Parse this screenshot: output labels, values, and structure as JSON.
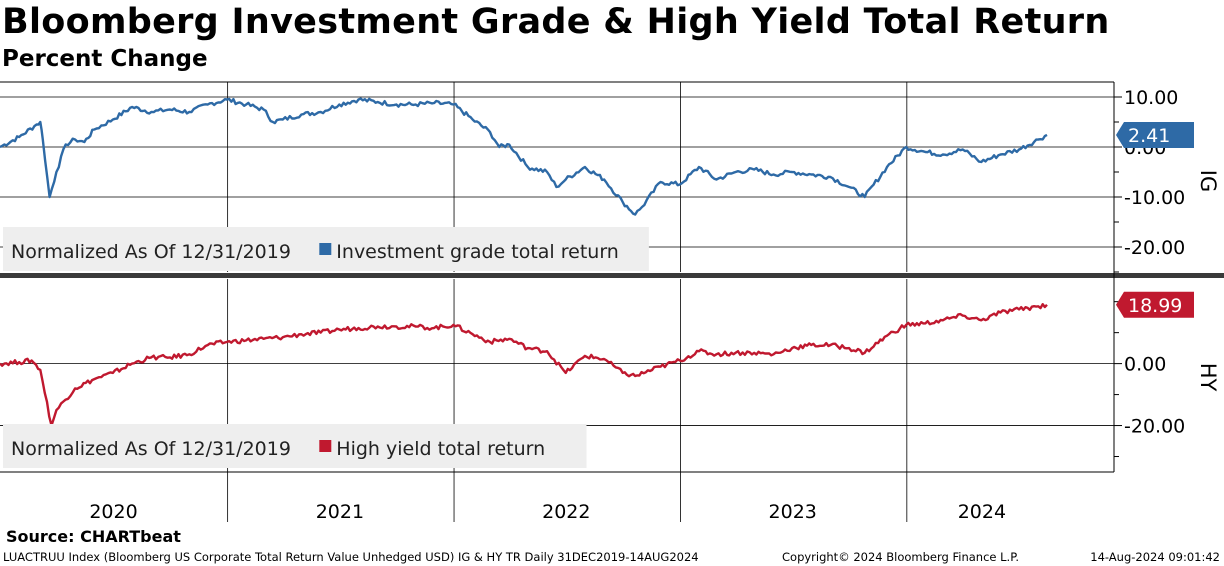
{
  "title": "Bloomberg Investment Grade & High Yield Total Return",
  "subtitle": "Percent Change",
  "source": "Source: CHARTbeat",
  "footer": {
    "left": "LUACTRUU Index (Bloomberg US Corporate Total Return Value Unhedged USD) IG & HY TR  Daily 31DEC2019-14AUG2024",
    "middle": "Copyright© 2024 Bloomberg Finance L.P.",
    "right": "14-Aug-2024 09:01:42"
  },
  "colors": {
    "ig": "#2e6aa6",
    "hy": "#c0192f",
    "grid": "#000000",
    "legend_bg": "#eeeeee",
    "separator": "#3a3a3a"
  },
  "chart_data": [
    {
      "type": "line",
      "panel": "IG",
      "axis_label": "IG",
      "legend_prefix": "Normalized As Of 12/31/2019",
      "ylim": [
        -25,
        13
      ],
      "yticks": [
        10,
        0,
        -10,
        -20
      ],
      "ytick_labels": [
        "10.00",
        "0.00",
        "-10.00",
        "-20.00"
      ],
      "last_value_label": "2.41",
      "grid": true,
      "series": [
        {
          "name": "Investment grade total return",
          "points": [
            [
              "2019-12-31",
              0.0
            ],
            [
              "2020-01-31",
              2.0
            ],
            [
              "2020-02-28",
              4.5
            ],
            [
              "2020-03-05",
              5.0
            ],
            [
              "2020-03-09",
              1.5
            ],
            [
              "2020-03-20",
              -10.0
            ],
            [
              "2020-03-31",
              -5.0
            ],
            [
              "2020-04-15",
              0.5
            ],
            [
              "2020-04-30",
              1.5
            ],
            [
              "2020-05-15",
              1.0
            ],
            [
              "2020-05-31",
              3.5
            ],
            [
              "2020-06-30",
              5.5
            ],
            [
              "2020-07-31",
              8.0
            ],
            [
              "2020-08-31",
              7.0
            ],
            [
              "2020-09-30",
              7.5
            ],
            [
              "2020-10-31",
              7.0
            ],
            [
              "2020-11-30",
              8.5
            ],
            [
              "2020-12-31",
              9.5
            ],
            [
              "2021-01-31",
              8.5
            ],
            [
              "2021-02-28",
              7.5
            ],
            [
              "2021-03-15",
              5.0
            ],
            [
              "2021-03-31",
              5.5
            ],
            [
              "2021-04-30",
              6.5
            ],
            [
              "2021-05-31",
              7.0
            ],
            [
              "2021-06-30",
              8.5
            ],
            [
              "2021-07-31",
              9.5
            ],
            [
              "2021-08-31",
              9.0
            ],
            [
              "2021-09-30",
              8.5
            ],
            [
              "2021-10-31",
              8.5
            ],
            [
              "2021-11-30",
              8.8
            ],
            [
              "2021-12-31",
              8.5
            ],
            [
              "2022-01-31",
              5.5
            ],
            [
              "2022-02-28",
              3.0
            ],
            [
              "2022-03-15",
              0.0
            ],
            [
              "2022-03-31",
              0.5
            ],
            [
              "2022-04-30",
              -4.0
            ],
            [
              "2022-05-31",
              -5.0
            ],
            [
              "2022-06-15",
              -8.0
            ],
            [
              "2022-06-30",
              -6.5
            ],
            [
              "2022-07-31",
              -4.0
            ],
            [
              "2022-08-31",
              -6.5
            ],
            [
              "2022-09-30",
              -11.0
            ],
            [
              "2022-10-20",
              -13.5
            ],
            [
              "2022-10-31",
              -12.0
            ],
            [
              "2022-11-30",
              -7.0
            ],
            [
              "2022-12-31",
              -7.5
            ],
            [
              "2023-01-31",
              -4.0
            ],
            [
              "2023-02-28",
              -6.5
            ],
            [
              "2023-03-31",
              -5.0
            ],
            [
              "2023-04-30",
              -4.5
            ],
            [
              "2023-05-31",
              -5.5
            ],
            [
              "2023-06-30",
              -5.0
            ],
            [
              "2023-07-31",
              -5.5
            ],
            [
              "2023-08-31",
              -6.0
            ],
            [
              "2023-09-30",
              -8.0
            ],
            [
              "2023-10-25",
              -10.0
            ],
            [
              "2023-11-30",
              -4.0
            ],
            [
              "2023-12-31",
              0.0
            ],
            [
              "2024-01-31",
              -1.0
            ],
            [
              "2024-02-28",
              -1.5
            ],
            [
              "2024-03-31",
              -0.5
            ],
            [
              "2024-04-30",
              -3.0
            ],
            [
              "2024-05-31",
              -1.5
            ],
            [
              "2024-06-30",
              -0.5
            ],
            [
              "2024-07-31",
              1.5
            ],
            [
              "2024-08-14",
              2.41
            ]
          ]
        }
      ]
    },
    {
      "type": "line",
      "panel": "HY",
      "axis_label": "HY",
      "legend_prefix": "Normalized As Of 12/31/2019",
      "ylim": [
        -35,
        27
      ],
      "yticks": [
        0,
        -20
      ],
      "ytick_labels": [
        "0.00",
        "-20.00"
      ],
      "last_value_label": "18.99",
      "grid": true,
      "series": [
        {
          "name": "High yield total return",
          "points": [
            [
              "2019-12-31",
              0.0
            ],
            [
              "2020-01-31",
              0.5
            ],
            [
              "2020-02-20",
              1.0
            ],
            [
              "2020-03-05",
              -2.0
            ],
            [
              "2020-03-23",
              -20.0
            ],
            [
              "2020-03-31",
              -15.0
            ],
            [
              "2020-04-30",
              -8.0
            ],
            [
              "2020-05-31",
              -5.0
            ],
            [
              "2020-06-30",
              -3.0
            ],
            [
              "2020-07-31",
              0.0
            ],
            [
              "2020-08-31",
              2.0
            ],
            [
              "2020-09-30",
              2.0
            ],
            [
              "2020-10-31",
              3.0
            ],
            [
              "2020-11-30",
              6.0
            ],
            [
              "2020-12-31",
              7.0
            ],
            [
              "2021-01-31",
              7.5
            ],
            [
              "2021-02-28",
              8.0
            ],
            [
              "2021-03-31",
              8.5
            ],
            [
              "2021-04-30",
              9.5
            ],
            [
              "2021-05-31",
              10.0
            ],
            [
              "2021-06-30",
              11.0
            ],
            [
              "2021-07-31",
              11.5
            ],
            [
              "2021-08-31",
              12.0
            ],
            [
              "2021-09-30",
              12.0
            ],
            [
              "2021-10-31",
              12.0
            ],
            [
              "2021-11-30",
              11.5
            ],
            [
              "2021-12-31",
              12.5
            ],
            [
              "2022-01-31",
              9.5
            ],
            [
              "2022-02-28",
              7.0
            ],
            [
              "2022-03-31",
              8.0
            ],
            [
              "2022-04-30",
              5.0
            ],
            [
              "2022-05-31",
              4.0
            ],
            [
              "2022-06-30",
              -3.0
            ],
            [
              "2022-07-31",
              2.5
            ],
            [
              "2022-08-31",
              1.5
            ],
            [
              "2022-09-30",
              -3.0
            ],
            [
              "2022-10-20",
              -4.0
            ],
            [
              "2022-11-30",
              -1.0
            ],
            [
              "2022-12-31",
              1.0
            ],
            [
              "2023-01-31",
              4.0
            ],
            [
              "2023-02-28",
              3.0
            ],
            [
              "2023-03-31",
              3.5
            ],
            [
              "2023-04-30",
              3.5
            ],
            [
              "2023-05-31",
              3.0
            ],
            [
              "2023-06-30",
              5.0
            ],
            [
              "2023-07-31",
              6.0
            ],
            [
              "2023-08-31",
              6.0
            ],
            [
              "2023-09-30",
              5.0
            ],
            [
              "2023-10-25",
              3.5
            ],
            [
              "2023-11-30",
              9.0
            ],
            [
              "2023-12-31",
              12.5
            ],
            [
              "2024-01-31",
              13.0
            ],
            [
              "2024-02-28",
              14.0
            ],
            [
              "2024-03-31",
              15.5
            ],
            [
              "2024-04-30",
              14.0
            ],
            [
              "2024-05-31",
              16.5
            ],
            [
              "2024-06-30",
              17.5
            ],
            [
              "2024-07-31",
              18.5
            ],
            [
              "2024-08-14",
              18.99
            ]
          ]
        }
      ]
    }
  ],
  "x_axis": {
    "ticks": [
      "2020",
      "2021",
      "2022",
      "2023",
      "2024"
    ],
    "tick_dates": [
      "2020-07-01",
      "2021-07-01",
      "2022-07-01",
      "2023-07-01",
      "2024-05-01"
    ],
    "year_boundaries": [
      "2021-01-01",
      "2022-01-01",
      "2023-01-01",
      "2024-01-01"
    ],
    "start": "2019-12-31",
    "end": "2024-11-30"
  }
}
